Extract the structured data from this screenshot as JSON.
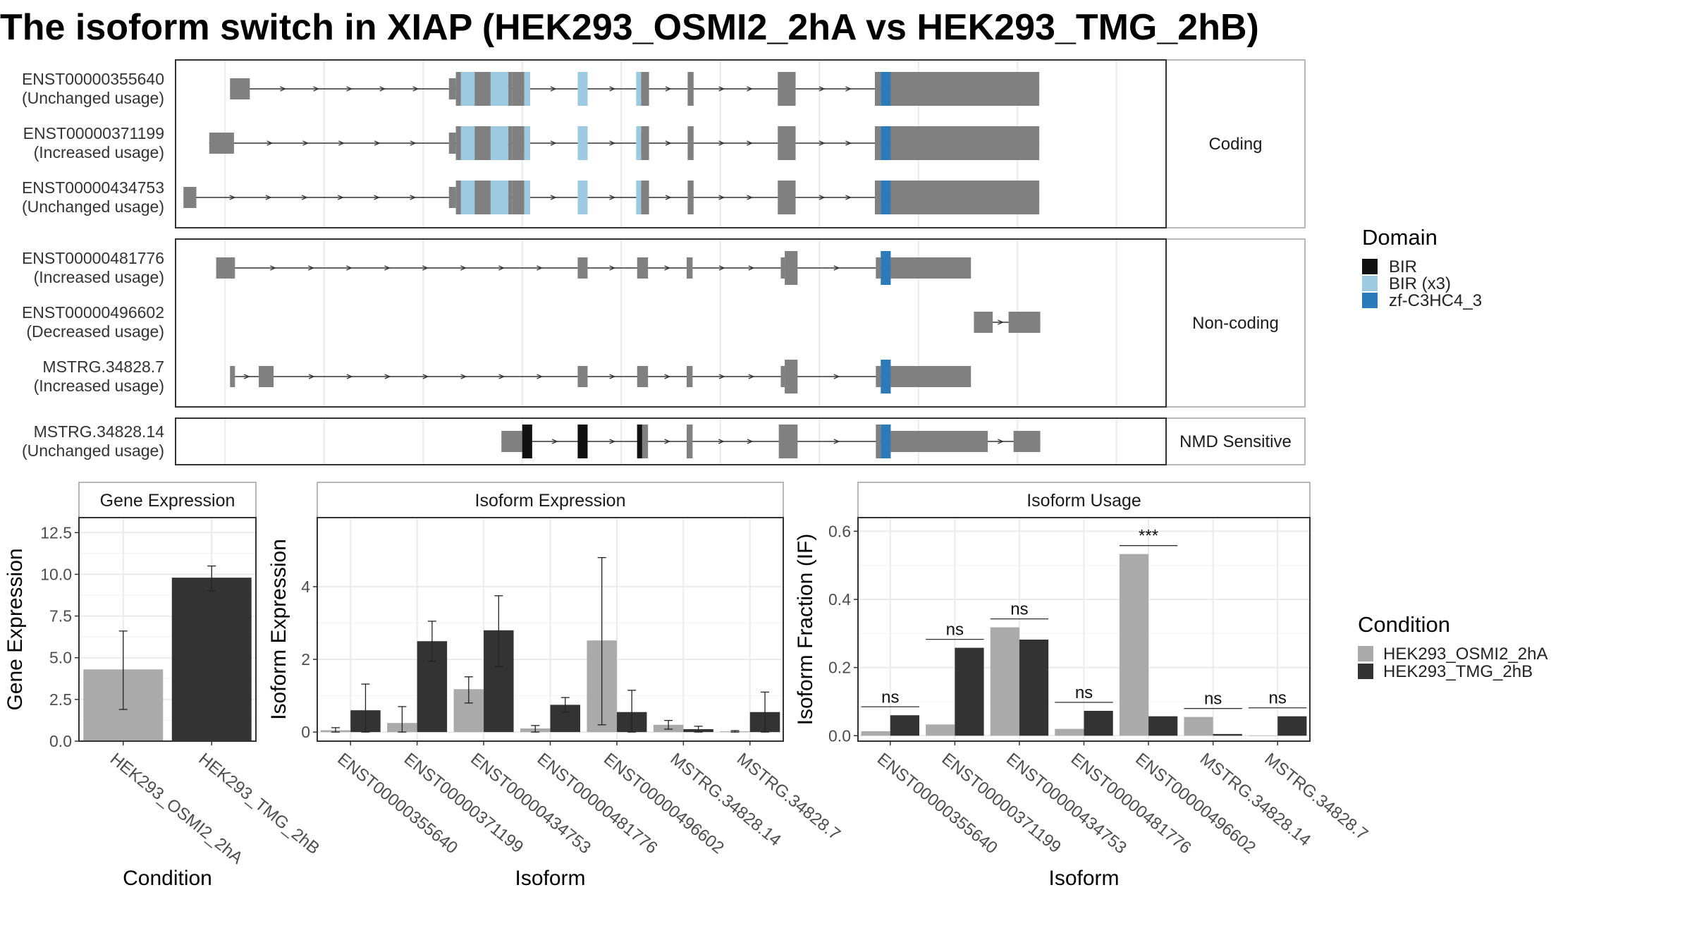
{
  "title": "The isoform switch in XIAP (HEK293_OSMI2_2hA vs HEK293_TMG_2hB)",
  "colors": {
    "exon": "#808080",
    "bir": "#111111",
    "bir_x3": "#9ecae1",
    "zf": "#2b7bba",
    "cond1": "#aaaaaa",
    "cond2": "#333333"
  },
  "transcript_panel": {
    "xlim": [
      0,
      1000
    ],
    "groups": [
      {
        "label": "Coding",
        "transcripts": [
          {
            "id": "ENST00000355640",
            "usage": "(Unchanged usage)",
            "exons": [
              [
                55,
                75,
                "s"
              ],
              [
                276,
                283,
                "s"
              ],
              [
                283,
                340,
                "l"
              ],
              [
                340,
                352,
                "l"
              ],
              [
                352,
                356,
                "s"
              ],
              [
                407,
                416,
                "s"
              ],
              [
                466,
                470,
                "s"
              ],
              [
                470,
                478,
                "l"
              ],
              [
                517,
                523,
                "l"
              ],
              [
                608,
                626,
                "l"
              ],
              [
                706,
                712,
                "l"
              ],
              [
                712,
                722,
                "l"
              ],
              [
                722,
                872,
                "l"
              ]
            ],
            "domains": [
              [
                288,
                302,
                "bir_x3"
              ],
              [
                318,
                336,
                "bir_x3"
              ],
              [
                352,
                358,
                "bir_x3"
              ],
              [
                406,
                416,
                "bir_x3"
              ],
              [
                465,
                470,
                "bir_x3"
              ],
              [
                712,
                722,
                "zf"
              ]
            ]
          },
          {
            "id": "ENST00000371199",
            "usage": "(Increased usage)",
            "exons": [
              [
                34,
                59,
                "s"
              ],
              [
                276,
                283,
                "s"
              ],
              [
                283,
                340,
                "l"
              ],
              [
                340,
                352,
                "l"
              ],
              [
                352,
                356,
                "s"
              ],
              [
                407,
                416,
                "s"
              ],
              [
                466,
                470,
                "s"
              ],
              [
                470,
                478,
                "l"
              ],
              [
                517,
                523,
                "l"
              ],
              [
                608,
                626,
                "l"
              ],
              [
                706,
                712,
                "l"
              ],
              [
                712,
                722,
                "l"
              ],
              [
                722,
                872,
                "l"
              ]
            ],
            "domains": [
              [
                288,
                302,
                "bir_x3"
              ],
              [
                318,
                336,
                "bir_x3"
              ],
              [
                352,
                358,
                "bir_x3"
              ],
              [
                406,
                416,
                "bir_x3"
              ],
              [
                465,
                470,
                "bir_x3"
              ],
              [
                712,
                722,
                "zf"
              ]
            ]
          },
          {
            "id": "ENST00000434753",
            "usage": "(Unchanged usage)",
            "exons": [
              [
                8,
                21,
                "s"
              ],
              [
                276,
                283,
                "s"
              ],
              [
                283,
                340,
                "l"
              ],
              [
                340,
                352,
                "l"
              ],
              [
                352,
                356,
                "s"
              ],
              [
                407,
                416,
                "s"
              ],
              [
                466,
                470,
                "s"
              ],
              [
                470,
                478,
                "l"
              ],
              [
                517,
                523,
                "l"
              ],
              [
                608,
                626,
                "l"
              ],
              [
                706,
                712,
                "l"
              ],
              [
                712,
                722,
                "l"
              ],
              [
                722,
                872,
                "l"
              ]
            ],
            "domains": [
              [
                288,
                302,
                "bir_x3"
              ],
              [
                318,
                336,
                "bir_x3"
              ],
              [
                352,
                358,
                "bir_x3"
              ],
              [
                406,
                416,
                "bir_x3"
              ],
              [
                465,
                470,
                "bir_x3"
              ],
              [
                712,
                722,
                "zf"
              ]
            ]
          }
        ]
      },
      {
        "label": "Non-coding",
        "transcripts": [
          {
            "id": "ENST00000481776",
            "usage": "(Increased usage)",
            "exons": [
              [
                41,
                60,
                "s"
              ],
              [
                406,
                416,
                "s"
              ],
              [
                466,
                477,
                "s"
              ],
              [
                516,
                522,
                "s"
              ],
              [
                611,
                615,
                "s"
              ],
              [
                615,
                628,
                "l"
              ],
              [
                707,
                712,
                "s"
              ],
              [
                712,
                722,
                "l"
              ],
              [
                722,
                803,
                "s"
              ]
            ],
            "domains": [
              [
                712,
                722,
                "zf"
              ]
            ]
          },
          {
            "id": "ENST00000496602",
            "usage": "(Decreased usage)",
            "exons": [
              [
                806,
                825,
                "s"
              ],
              [
                841,
                873,
                "s"
              ]
            ],
            "domains": []
          },
          {
            "id": "MSTRG.34828.7",
            "usage": "(Increased usage)",
            "exons": [
              [
                55,
                60,
                "s"
              ],
              [
                84,
                99,
                "s"
              ],
              [
                406,
                416,
                "s"
              ],
              [
                466,
                477,
                "s"
              ],
              [
                516,
                522,
                "s"
              ],
              [
                611,
                615,
                "s"
              ],
              [
                615,
                628,
                "l"
              ],
              [
                707,
                712,
                "s"
              ],
              [
                712,
                722,
                "l"
              ],
              [
                722,
                803,
                "s"
              ]
            ],
            "domains": [
              [
                712,
                722,
                "zf"
              ]
            ]
          }
        ]
      },
      {
        "label": "NMD Sensitive",
        "transcripts": [
          {
            "id": "MSTRG.34828.14",
            "usage": "(Unchanged usage)",
            "exons": [
              [
                329,
                352,
                "s"
              ],
              [
                352,
                360,
                "l"
              ],
              [
                406,
                416,
                "l"
              ],
              [
                466,
                477,
                "l"
              ],
              [
                516,
                522,
                "l"
              ],
              [
                609,
                628,
                "l"
              ],
              [
                707,
                712,
                "l"
              ],
              [
                712,
                722,
                "l"
              ],
              [
                722,
                820,
                "s"
              ],
              [
                846,
                873,
                "s"
              ]
            ],
            "domains": [
              [
                350,
                360,
                "bir"
              ],
              [
                406,
                416,
                "bir"
              ],
              [
                466,
                471,
                "bir"
              ],
              [
                712,
                722,
                "zf"
              ]
            ]
          }
        ]
      }
    ]
  },
  "domain_legend": {
    "title": "Domain",
    "items": [
      {
        "label": "BIR",
        "key": "bir"
      },
      {
        "label": "BIR (x3)",
        "key": "bir_x3"
      },
      {
        "label": "zf-C3HC4_3",
        "key": "zf"
      }
    ]
  },
  "condition_legend": {
    "title": "Condition",
    "items": [
      {
        "label": "HEK293_OSMI2_2hA",
        "key": "cond1"
      },
      {
        "label": "HEK293_TMG_2hB",
        "key": "cond2"
      }
    ]
  },
  "chart_data": [
    {
      "type": "bar",
      "title": "Gene Expression",
      "xlabel": "Condition",
      "ylabel": "Gene Expression",
      "categories": [
        "HEK293_OSMI2_2hA",
        "HEK293_TMG_2hB"
      ],
      "values": [
        4.3,
        9.8
      ],
      "error_low": [
        1.9,
        9.0
      ],
      "error_high": [
        6.6,
        10.5
      ],
      "ylim": [
        0,
        13.4
      ],
      "yticks": [
        "0.0",
        "2.5",
        "5.0",
        "7.5",
        "10.0",
        "12.5"
      ]
    },
    {
      "type": "bar",
      "title": "Isoform Expression",
      "xlabel": "Isoform",
      "ylabel": "Isoform Expression",
      "categories": [
        "ENST00000355640",
        "ENST00000371199",
        "ENST00000434753",
        "ENST00000481776",
        "ENST00000496602",
        "MSTRG.34828.14",
        "MSTRG.34828.7"
      ],
      "series": [
        {
          "name": "HEK293_OSMI2_2hA",
          "values": [
            0.05,
            0.25,
            1.18,
            0.1,
            2.52,
            0.2,
            0.02
          ],
          "error_low": [
            0.0,
            0.0,
            0.8,
            0.0,
            0.2,
            0.08,
            0.0
          ],
          "error_high": [
            0.12,
            0.7,
            1.52,
            0.18,
            4.8,
            0.32,
            0.04
          ]
        },
        {
          "name": "HEK293_TMG_2hB",
          "values": [
            0.6,
            2.5,
            2.8,
            0.75,
            0.55,
            0.08,
            0.55
          ],
          "error_low": [
            0.0,
            1.95,
            1.8,
            0.55,
            0.0,
            0.0,
            0.0
          ],
          "error_high": [
            1.32,
            3.05,
            3.75,
            0.95,
            1.15,
            0.16,
            1.1
          ]
        }
      ],
      "ylim": [
        -0.25,
        5.9
      ],
      "yticks": [
        "0",
        "2",
        "4"
      ]
    },
    {
      "type": "bar",
      "title": "Isoform Usage",
      "xlabel": "Isoform",
      "ylabel": "Isoform Fraction (IF)",
      "categories": [
        "ENST00000355640",
        "ENST00000371199",
        "ENST00000434753",
        "ENST00000481776",
        "ENST00000496602",
        "MSTRG.34828.14",
        "MSTRG.34828.7"
      ],
      "series": [
        {
          "name": "HEK293_OSMI2_2hA",
          "values": [
            0.013,
            0.033,
            0.318,
            0.02,
            0.533,
            0.055,
            0.0
          ]
        },
        {
          "name": "HEK293_TMG_2hB",
          "values": [
            0.06,
            0.258,
            0.282,
            0.073,
            0.057,
            0.005,
            0.057
          ]
        }
      ],
      "significance": [
        "ns",
        "ns",
        "ns",
        "ns",
        "***",
        "ns",
        "ns"
      ],
      "ylim": [
        -0.016,
        0.64
      ],
      "yticks": [
        "0.0",
        "0.2",
        "0.4",
        "0.6"
      ]
    }
  ]
}
